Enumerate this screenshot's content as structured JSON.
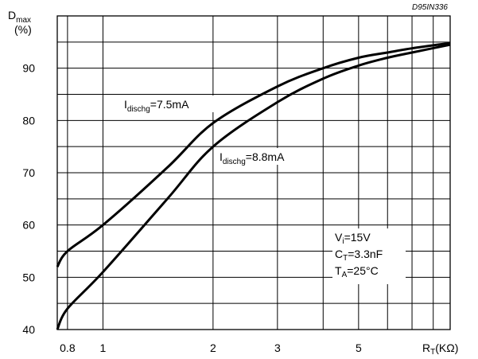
{
  "chart_data": {
    "type": "line",
    "figure_code": "D95IN336",
    "ylabel": {
      "main": "D",
      "sub": "max",
      "unit": "(%)"
    },
    "xlabel": {
      "main": "R",
      "sub": "T",
      "unit": "(KΩ)"
    },
    "x_scale": "log",
    "xlim": [
      0.75,
      8.9
    ],
    "ylim": [
      40,
      100
    ],
    "x_ticks": [
      0.8,
      1,
      2,
      3,
      5
    ],
    "x_tick_labels": [
      "0.8",
      "1",
      "2",
      "3",
      "5"
    ],
    "y_ticks": [
      40,
      50,
      60,
      70,
      80,
      90
    ],
    "y_tick_labels": [
      "40",
      "50",
      "60",
      "70",
      "80",
      "90"
    ],
    "grid": true,
    "series": [
      {
        "name": "Idischg=7.5mA",
        "label": {
          "main": "I",
          "sub": "dischg",
          "rest": "=7.5mA"
        },
        "x": [
          0.75,
          0.8,
          1.0,
          1.5,
          2.0,
          3.0,
          4.0,
          5.0,
          6.0,
          7.0,
          8.9
        ],
        "y": [
          52,
          55,
          60,
          71,
          79.5,
          86.5,
          90,
          92,
          93,
          93.8,
          94.8
        ]
      },
      {
        "name": "Idischg=8.8mA",
        "label": {
          "main": "I",
          "sub": "dischg",
          "rest": "=8.8mA"
        },
        "x": [
          0.75,
          0.8,
          1.0,
          1.5,
          2.0,
          3.0,
          4.0,
          5.0,
          6.0,
          7.0,
          8.9
        ],
        "y": [
          40,
          44,
          51,
          65,
          75,
          83.5,
          88,
          90.5,
          92,
          93,
          94.5
        ]
      }
    ],
    "conditions": [
      {
        "main": "V",
        "sub": "i",
        "rest": "=15V"
      },
      {
        "main": "C",
        "sub": "T",
        "rest": "=3.3nF"
      },
      {
        "main": "T",
        "sub": "A",
        "rest": "=25°C"
      }
    ]
  }
}
